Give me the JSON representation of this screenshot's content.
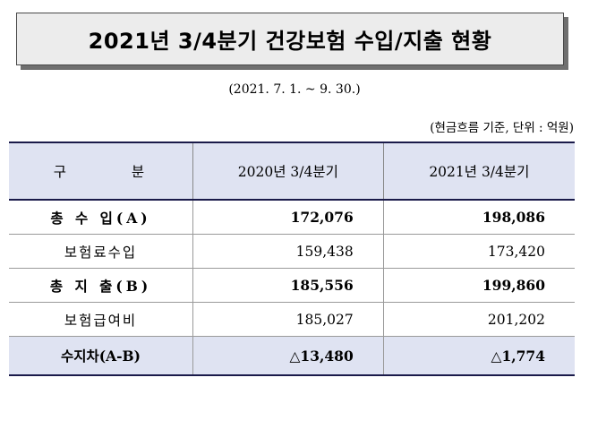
{
  "title": "2021년 3/4분기 건강보험 수입/지출 현황",
  "period": "(2021. 7. 1. ~ 9. 30.)",
  "unit_note": "(현금흐름 기준, 단위 : 억원)",
  "table": {
    "headers": [
      "구 분",
      "2020년 3/4분기",
      "2021년 3/4분기"
    ],
    "rows": [
      {
        "label": "총 수 입(A)",
        "y2020": "172,076",
        "y2021": "198,086"
      },
      {
        "label": "보험료수입",
        "y2020": "159,438",
        "y2021": "173,420"
      },
      {
        "label": "총 지 출(B)",
        "y2020": "185,556",
        "y2021": "199,860"
      },
      {
        "label": "보험급여비",
        "y2020": "185,027",
        "y2021": "201,202"
      },
      {
        "label": "수지차(A-B)",
        "y2020": "△13,480",
        "y2021": "△1,774"
      }
    ]
  },
  "colors": {
    "header_bg": "#dfe3f2",
    "title_bg": "#ececec",
    "rule": "#1a1a4a"
  }
}
